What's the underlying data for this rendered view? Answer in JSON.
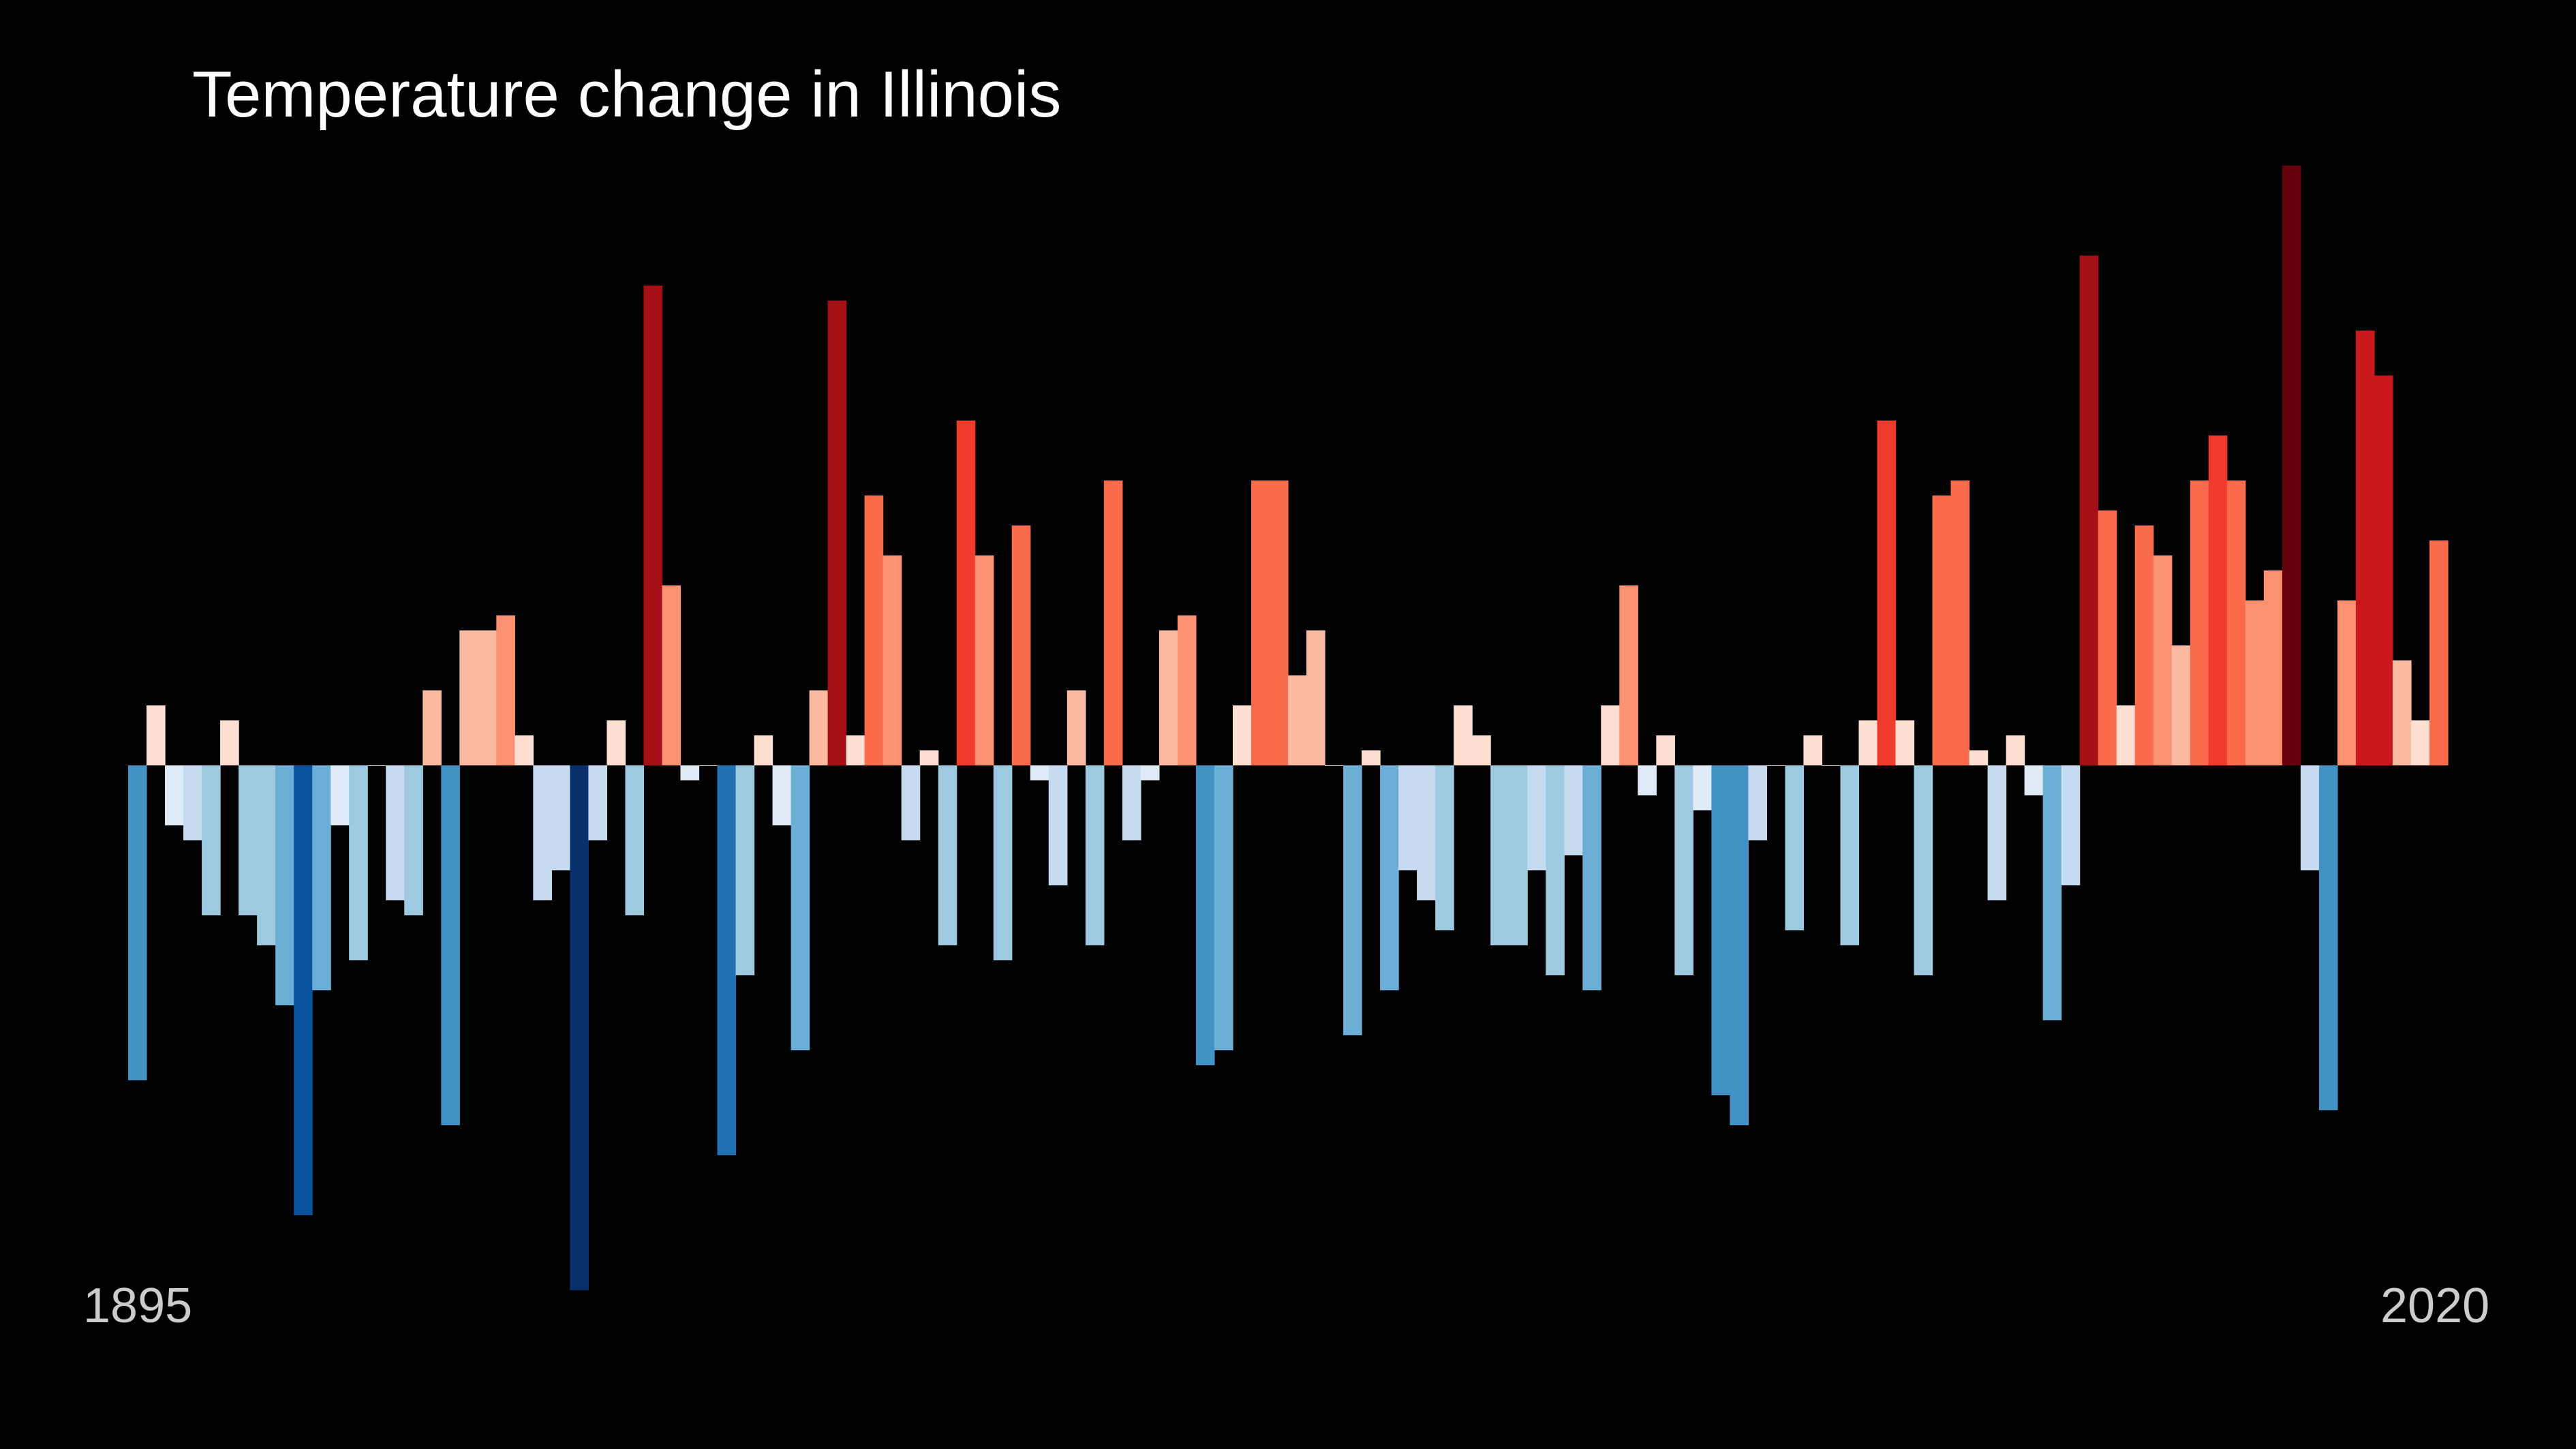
{
  "chart_data": {
    "type": "bar",
    "title": "Temperature change in Illinois",
    "x_start_label": "1895",
    "x_end_label": "2020",
    "x_start": 1895,
    "x_end": 2020,
    "ylim": [
      -3.5,
      4.1
    ],
    "values": [
      -2.1,
      0.4,
      -0.4,
      -0.5,
      -1.0,
      0.3,
      -1.0,
      -1.2,
      -1.6,
      -3.0,
      -1.5,
      -0.4,
      -1.3,
      0.0,
      -0.9,
      -1.0,
      0.5,
      -2.4,
      0.9,
      0.9,
      1.0,
      0.2,
      -0.9,
      -0.7,
      -3.5,
      -0.5,
      0.3,
      -1.0,
      3.2,
      1.2,
      -0.1,
      0.0,
      -2.6,
      -1.4,
      0.2,
      -0.4,
      -1.9,
      0.5,
      3.1,
      0.2,
      1.8,
      1.4,
      -0.5,
      0.1,
      -1.2,
      2.3,
      1.4,
      -1.3,
      1.6,
      -0.1,
      -0.8,
      0.5,
      -1.2,
      1.9,
      -0.5,
      -0.1,
      0.9,
      1.0,
      -2.0,
      -1.9,
      0.4,
      1.9,
      1.9,
      0.6,
      0.9,
      0.0,
      -1.8,
      0.1,
      -1.5,
      -0.7,
      -0.9,
      -1.1,
      0.4,
      0.2,
      -1.2,
      -1.2,
      -0.7,
      -1.4,
      -0.6,
      -1.5,
      0.4,
      1.2,
      -0.2,
      0.2,
      -1.4,
      -0.3,
      -2.2,
      -2.4,
      -0.5,
      0.0,
      -1.1,
      0.2,
      0.0,
      -1.2,
      0.3,
      2.3,
      0.3,
      -1.4,
      1.8,
      1.9,
      0.1,
      -0.9,
      0.2,
      -0.2,
      -1.7,
      -0.8,
      3.4,
      1.7,
      0.4,
      1.6,
      1.4,
      0.8,
      1.9,
      2.2,
      1.9,
      1.1,
      1.3,
      4.0,
      -0.7,
      -2.3,
      1.1,
      2.9,
      2.6,
      0.7,
      0.3,
      1.5
    ],
    "colors": {
      "background": "#000000",
      "ramp_negative": [
        "#deebf7",
        "#c6dbef",
        "#9ecae1",
        "#6baed6",
        "#4292c6",
        "#2171b5",
        "#08519c",
        "#08306b"
      ],
      "ramp_positive": [
        "#fee0d2",
        "#fcbba1",
        "#fc9272",
        "#fb6a4a",
        "#ef3b2c",
        "#cb181d",
        "#a50f15",
        "#67000d"
      ]
    }
  }
}
